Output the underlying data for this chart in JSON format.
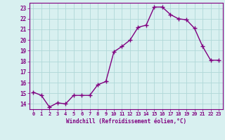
{
  "x": [
    0,
    1,
    2,
    3,
    4,
    5,
    6,
    7,
    8,
    9,
    10,
    11,
    12,
    13,
    14,
    15,
    16,
    17,
    18,
    19,
    20,
    21,
    22,
    23
  ],
  "y": [
    15.1,
    14.8,
    13.7,
    14.1,
    14.0,
    14.8,
    14.8,
    14.8,
    15.8,
    16.1,
    18.9,
    19.4,
    20.0,
    21.2,
    21.4,
    23.1,
    23.1,
    22.4,
    22.0,
    21.9,
    21.1,
    19.4,
    18.1,
    18.1
  ],
  "line_color": "#800080",
  "marker": "+",
  "marker_size": 4,
  "line_width": 1.0,
  "bg_color": "#d8f0f0",
  "grid_color": "#b0d8d8",
  "xlabel": "Windchill (Refroidissement éolien,°C)",
  "xlabel_color": "#800080",
  "tick_color": "#800080",
  "ylim": [
    13.5,
    23.5
  ],
  "xlim": [
    -0.5,
    23.5
  ],
  "yticks": [
    14,
    15,
    16,
    17,
    18,
    19,
    20,
    21,
    22,
    23
  ],
  "xticks": [
    0,
    1,
    2,
    3,
    4,
    5,
    6,
    7,
    8,
    9,
    10,
    11,
    12,
    13,
    14,
    15,
    16,
    17,
    18,
    19,
    20,
    21,
    22,
    23
  ],
  "xtick_labels": [
    "0",
    "1",
    "2",
    "3",
    "4",
    "5",
    "6",
    "7",
    "8",
    "9",
    "10",
    "11",
    "12",
    "13",
    "14",
    "15",
    "16",
    "17",
    "18",
    "19",
    "20",
    "21",
    "22",
    "23"
  ]
}
